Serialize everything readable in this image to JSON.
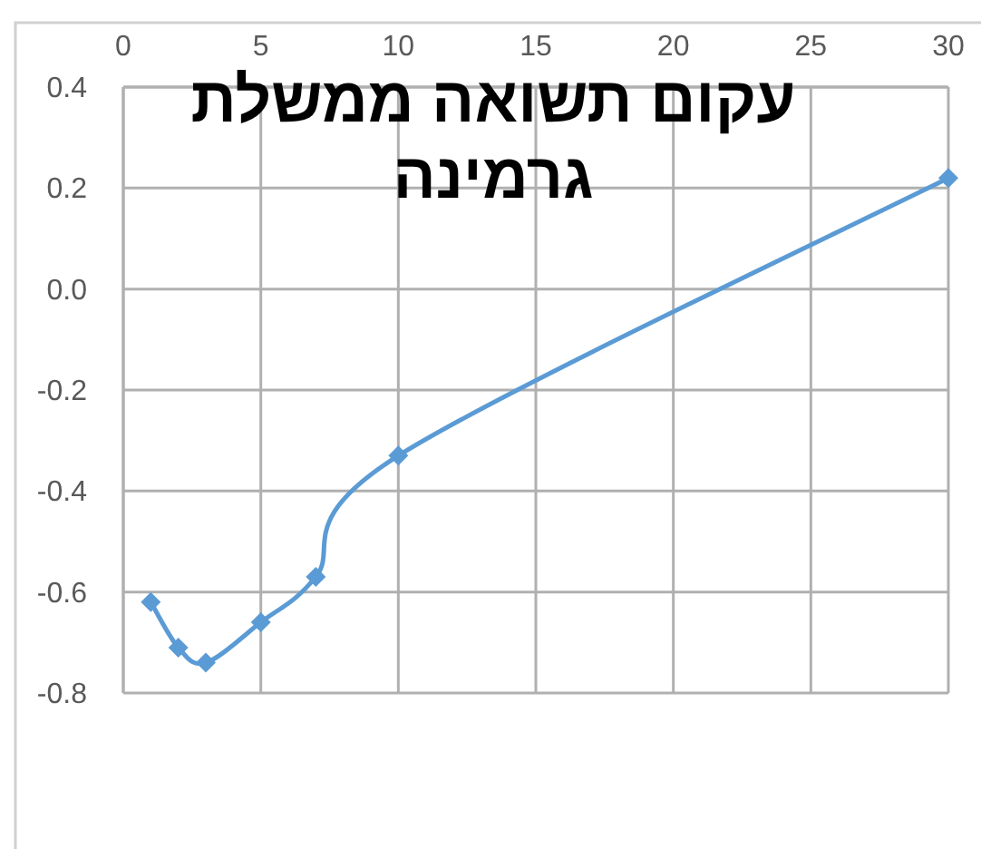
{
  "chart_data": {
    "type": "line",
    "title": "עקום תשואה ממשלת גרמינה",
    "x": [
      1,
      2,
      3,
      5,
      7,
      10,
      30
    ],
    "series": [
      {
        "color": "#5b9bd5",
        "values": [
          -0.62,
          -0.71,
          -0.74,
          -0.66,
          -0.57,
          -0.33,
          0.22
        ]
      }
    ],
    "xlim": [
      0,
      30
    ],
    "xticks": [
      0,
      5,
      10,
      15,
      20,
      25,
      30
    ],
    "ylim": [
      -0.8,
      0.4
    ],
    "yticks": [
      {
        "value": -0.8,
        "label": "-0.8"
      },
      {
        "value": -0.6,
        "label": "-0.6"
      },
      {
        "value": -0.4,
        "label": "-0.4"
      },
      {
        "value": -0.2,
        "label": "-0.2"
      },
      {
        "value": 0,
        "label": "0.0"
      },
      {
        "value": 0.2,
        "label": "0.2"
      },
      {
        "value": 0.4,
        "label": "0.4"
      }
    ],
    "grid": true,
    "marker": "diamond",
    "line_style": "solid"
  }
}
